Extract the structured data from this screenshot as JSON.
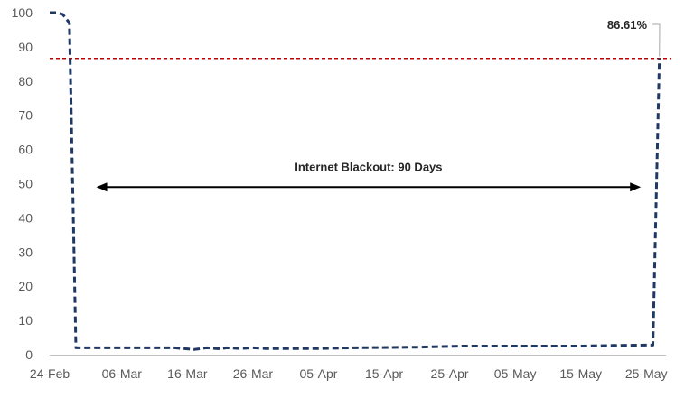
{
  "chart_data": {
    "type": "line",
    "title": "",
    "xlabel": "",
    "ylabel": "",
    "ylim": [
      0,
      100
    ],
    "yticks": [
      0,
      10,
      20,
      30,
      40,
      50,
      60,
      70,
      80,
      90,
      100
    ],
    "xlim": [
      "2024-02-24",
      "2024-05-28"
    ],
    "xticks": [
      {
        "date": "2024-02-24",
        "label": "24-Feb"
      },
      {
        "date": "2024-03-06",
        "label": "06-Mar"
      },
      {
        "date": "2024-03-16",
        "label": "16-Mar"
      },
      {
        "date": "2024-03-26",
        "label": "26-Mar"
      },
      {
        "date": "2024-04-05",
        "label": "05-Apr"
      },
      {
        "date": "2024-04-15",
        "label": "15-Apr"
      },
      {
        "date": "2024-04-25",
        "label": "25-Apr"
      },
      {
        "date": "2024-05-05",
        "label": "05-May"
      },
      {
        "date": "2024-05-15",
        "label": "15-May"
      },
      {
        "date": "2024-05-25",
        "label": "25-May"
      }
    ],
    "grid": false,
    "series": [
      {
        "color": "#1f3864",
        "style": "dashed",
        "x": [
          "2024-02-24",
          "2024-02-25",
          "2024-02-26",
          "2024-02-27",
          "2024-02-28",
          "2024-03-01",
          "2024-03-04",
          "2024-03-09",
          "2024-03-14",
          "2024-03-17",
          "2024-03-19",
          "2024-03-21",
          "2024-03-22",
          "2024-03-24",
          "2024-03-26",
          "2024-03-28",
          "2024-03-31",
          "2024-04-05",
          "2024-04-10",
          "2024-04-20",
          "2024-04-27",
          "2024-05-05",
          "2024-05-15",
          "2024-05-20",
          "2024-05-25",
          "2024-05-26",
          "2024-05-27"
        ],
        "values": [
          100,
          100,
          99.5,
          97,
          2,
          2,
          2,
          2,
          2,
          1.5,
          2,
          1.7,
          2,
          1.8,
          2,
          1.8,
          1.8,
          1.8,
          2,
          2.2,
          2.5,
          2.5,
          2.5,
          2.7,
          2.8,
          2.8,
          86.61
        ]
      }
    ],
    "reference_line": {
      "value": 86.61,
      "color": "#c00000",
      "style": "dashed"
    },
    "annotations": {
      "value_label": "86.61%",
      "blackout_label": "Internet Blackout: 90 Days",
      "blackout_start": "2024-03-01",
      "blackout_end": "2024-05-25"
    }
  }
}
